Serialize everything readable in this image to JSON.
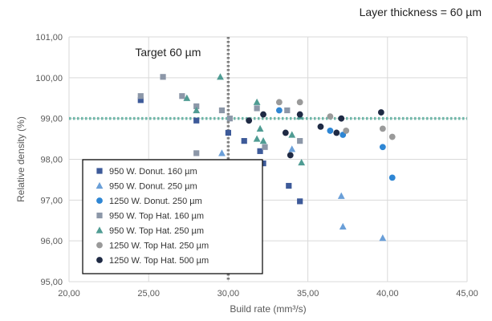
{
  "chart_data": {
    "type": "scatter",
    "subtitle": "Layer thickness = 60 µm",
    "xlabel": "Build rate (mm³/s)",
    "ylabel": "Relative density (%)",
    "xlim": [
      20,
      45
    ],
    "ylim": [
      95,
      101
    ],
    "xticks": [
      20,
      25,
      30,
      35,
      40,
      45
    ],
    "yticks": [
      95,
      96,
      97,
      98,
      99,
      100,
      101
    ],
    "xtick_labels": [
      "20,00",
      "25,00",
      "30,00",
      "35,00",
      "40,00",
      "45,00"
    ],
    "ytick_labels": [
      "95,00",
      "96,00",
      "97,00",
      "98,00",
      "99,00",
      "100,00",
      "101,00"
    ],
    "grid": true,
    "legend_position": "bottom-left",
    "reference_lines": [
      {
        "orientation": "vertical",
        "value": 30,
        "label": "Target 60 µm",
        "color": "#7f7f7f"
      },
      {
        "orientation": "horizontal",
        "value": 99,
        "label": "",
        "color": "#6fb7a8"
      }
    ],
    "series": [
      {
        "name": "950 W. Donut. 160 µm",
        "marker": "square",
        "color": "#3d5a99",
        "points": [
          [
            24.5,
            99.45
          ],
          [
            28.0,
            98.95
          ],
          [
            30.0,
            98.65
          ],
          [
            31.0,
            98.45
          ],
          [
            32.0,
            98.2
          ],
          [
            32.2,
            97.9
          ],
          [
            33.8,
            97.35
          ],
          [
            34.5,
            96.97
          ]
        ]
      },
      {
        "name": "950 W. Donut. 250 µm",
        "marker": "triangle",
        "color": "#6a9fd8",
        "points": [
          [
            29.6,
            98.15
          ],
          [
            34.0,
            98.25
          ],
          [
            37.1,
            97.1
          ],
          [
            37.2,
            96.35
          ],
          [
            39.7,
            96.07
          ]
        ]
      },
      {
        "name": "1250 W. Donut. 250 µm",
        "marker": "circle",
        "color": "#2e86d4",
        "points": [
          [
            33.2,
            99.2
          ],
          [
            36.4,
            98.7
          ],
          [
            37.2,
            98.6
          ],
          [
            39.7,
            98.3
          ],
          [
            40.3,
            97.55
          ]
        ]
      },
      {
        "name": "950 W. Top Hat. 160 µm",
        "marker": "square",
        "color": "#8c97a8",
        "points": [
          [
            24.5,
            99.55
          ],
          [
            25.9,
            100.02
          ],
          [
            27.1,
            99.55
          ],
          [
            28.0,
            99.3
          ],
          [
            28.0,
            98.15
          ],
          [
            29.6,
            99.2
          ],
          [
            30.1,
            99.0
          ],
          [
            31.8,
            99.25
          ],
          [
            32.3,
            98.3
          ],
          [
            33.7,
            99.2
          ],
          [
            34.5,
            98.45
          ]
        ]
      },
      {
        "name": "950 W. Top Hat. 250 µm",
        "marker": "triangle",
        "color": "#4f9c93",
        "points": [
          [
            27.4,
            99.5
          ],
          [
            28.0,
            99.2
          ],
          [
            29.5,
            100.02
          ],
          [
            31.8,
            99.4
          ],
          [
            31.8,
            98.5
          ],
          [
            32.0,
            98.75
          ],
          [
            32.2,
            98.45
          ],
          [
            34.0,
            98.6
          ],
          [
            34.6,
            97.92
          ],
          [
            34.5,
            99.05
          ]
        ]
      },
      {
        "name": "1250 W. Top Hat. 250 µm",
        "marker": "circle",
        "color": "#9a9a9a",
        "points": [
          [
            33.2,
            99.4
          ],
          [
            34.5,
            99.4
          ],
          [
            36.4,
            99.05
          ],
          [
            37.4,
            98.7
          ],
          [
            39.7,
            98.75
          ],
          [
            40.3,
            98.55
          ]
        ]
      },
      {
        "name": "1250 W. Top Hat. 500 µm",
        "marker": "circle",
        "color": "#1f2a44",
        "points": [
          [
            31.3,
            98.95
          ],
          [
            32.2,
            99.1
          ],
          [
            33.6,
            98.65
          ],
          [
            33.9,
            98.1
          ],
          [
            34.5,
            99.1
          ],
          [
            35.8,
            98.8
          ],
          [
            36.8,
            98.65
          ],
          [
            37.1,
            99.0
          ],
          [
            39.6,
            99.15
          ]
        ]
      }
    ]
  }
}
